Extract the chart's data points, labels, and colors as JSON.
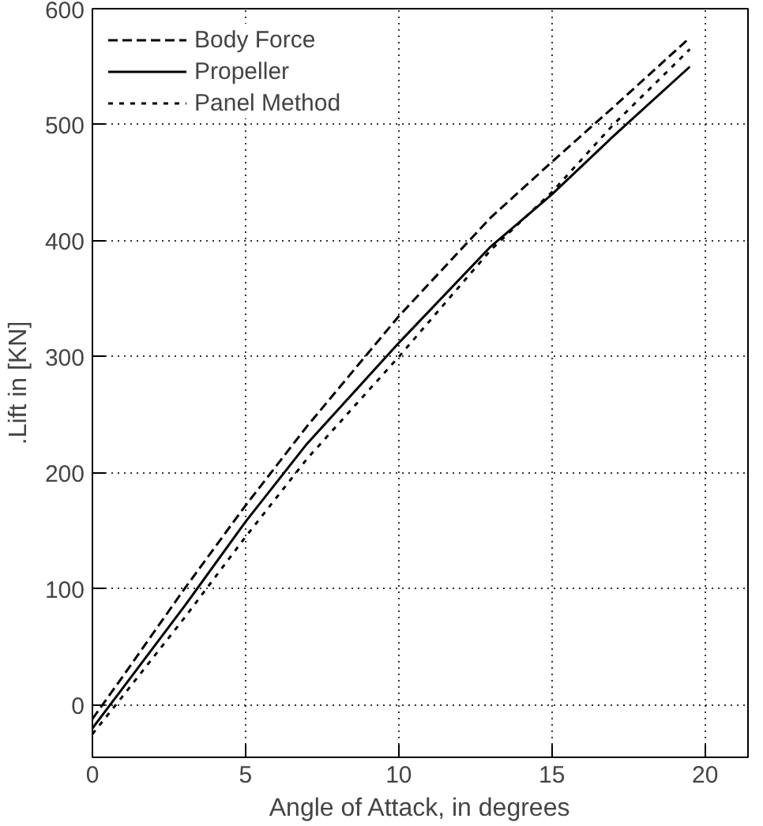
{
  "chart_data": {
    "type": "line",
    "xlabel": "Angle of Attack, in degrees",
    "ylabel": ".Lift in [KN]",
    "xlim": [
      0,
      21.4
    ],
    "ylim": [
      -45,
      600
    ],
    "xticks": [
      0,
      5,
      10,
      15,
      20
    ],
    "yticks": [
      0,
      100,
      200,
      300,
      400,
      500,
      600
    ],
    "grid": true,
    "legend": "top left",
    "marker": "none",
    "series": [
      {
        "name": "Body Force",
        "color": "#000000",
        "line_style": "dashed",
        "x": [
          0,
          1,
          3,
          5,
          7,
          10,
          13,
          15,
          17,
          19.5
        ],
        "values": [
          -12,
          25,
          100,
          172,
          240,
          335,
          420,
          468,
          515,
          575
        ]
      },
      {
        "name": "Propeller",
        "color": "#000000",
        "line_style": "solid",
        "x": [
          0,
          1,
          3,
          5,
          7,
          10,
          13,
          15,
          17,
          19.5
        ],
        "values": [
          -20,
          15,
          85,
          158,
          225,
          312,
          395,
          440,
          490,
          550
        ]
      },
      {
        "name": "Panel Method",
        "color": "#000000",
        "line_style": "dotted",
        "x": [
          0,
          1,
          3,
          5,
          7,
          10,
          13,
          15,
          17,
          19.5
        ],
        "values": [
          -25,
          8,
          75,
          145,
          212,
          300,
          392,
          442,
          500,
          565
        ]
      }
    ]
  }
}
